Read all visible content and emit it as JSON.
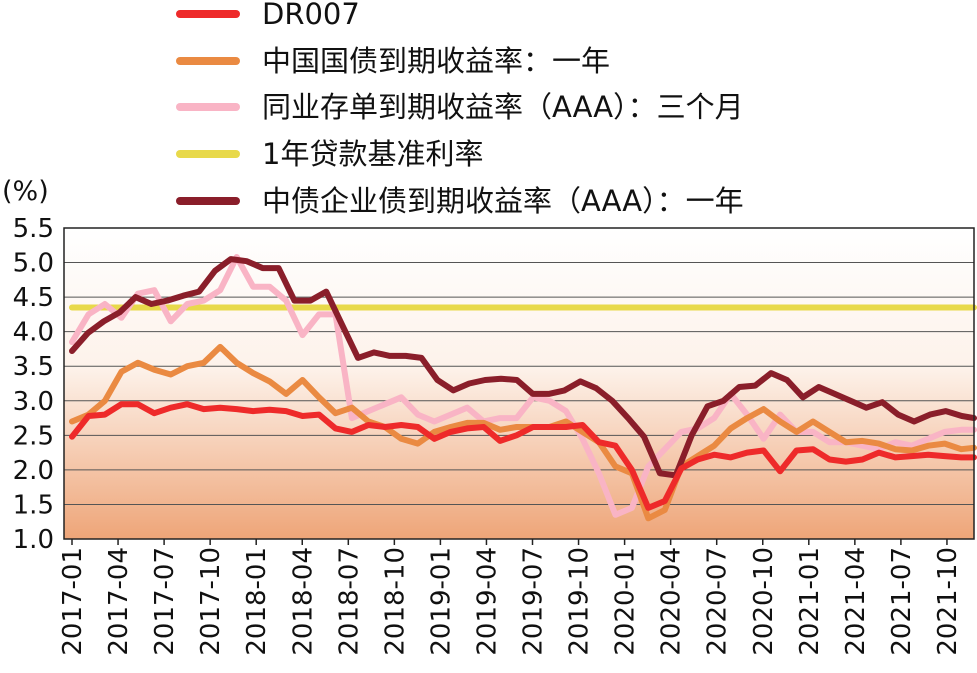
{
  "chart_data": {
    "type": "line",
    "unit_label": "(%)",
    "ylim": [
      1.0,
      5.5
    ],
    "y_ticks": [
      "1.0",
      "1.5",
      "2.0",
      "2.5",
      "3.0",
      "3.5",
      "4.0",
      "4.5",
      "5.0",
      "5.5"
    ],
    "x_ticks": [
      "2017-01",
      "2017-04",
      "2017-07",
      "2017-10",
      "2018-01",
      "2018-04",
      "2018-07",
      "2018-10",
      "2019-01",
      "2019-04",
      "2019-07",
      "2019-10",
      "2020-01",
      "2020-04",
      "2020-07",
      "2020-10",
      "2021-01",
      "2021-04",
      "2021-07",
      "2021-10"
    ],
    "x_start": "2017-01",
    "x_end": "2021-12",
    "grid": true,
    "legend_position": "top",
    "series": [
      {
        "name": "DR007",
        "color": "#ee2a2a",
        "values": [
          2.48,
          2.78,
          2.8,
          2.95,
          2.95,
          2.82,
          2.9,
          2.95,
          2.88,
          2.9,
          2.88,
          2.85,
          2.87,
          2.85,
          2.78,
          2.8,
          2.6,
          2.55,
          2.65,
          2.62,
          2.65,
          2.62,
          2.45,
          2.55,
          2.6,
          2.62,
          2.42,
          2.5,
          2.62,
          2.62,
          2.62,
          2.65,
          2.4,
          2.35,
          2.0,
          1.45,
          1.55,
          2.02,
          2.15,
          2.22,
          2.18,
          2.25,
          2.28,
          1.98,
          2.28,
          2.3,
          2.15,
          2.12,
          2.15,
          2.25,
          2.18,
          2.2,
          2.22,
          2.2,
          2.18,
          2.18
        ]
      },
      {
        "name": "中国国债到期收益率：一年",
        "color": "#ea8a42",
        "values": [
          2.7,
          2.8,
          3.0,
          3.42,
          3.55,
          3.45,
          3.38,
          3.5,
          3.55,
          3.78,
          3.55,
          3.4,
          3.28,
          3.1,
          3.3,
          3.05,
          2.82,
          2.9,
          2.7,
          2.62,
          2.45,
          2.38,
          2.55,
          2.62,
          2.68,
          2.68,
          2.58,
          2.62,
          2.62,
          2.62,
          2.7,
          2.55,
          2.4,
          2.05,
          1.95,
          1.3,
          1.42,
          2.05,
          2.2,
          2.35,
          2.6,
          2.75,
          2.88,
          2.7,
          2.55,
          2.7,
          2.55,
          2.4,
          2.42,
          2.38,
          2.3,
          2.28,
          2.35,
          2.38,
          2.3,
          2.32
        ]
      },
      {
        "name": "同业存单到期收益率（AAA）：三个月",
        "color": "#f9b4c5",
        "values": [
          3.85,
          4.25,
          4.4,
          4.2,
          4.55,
          4.6,
          4.15,
          4.4,
          4.45,
          4.6,
          5.08,
          4.65,
          4.65,
          4.45,
          3.95,
          4.25,
          4.25,
          2.75,
          2.85,
          2.95,
          3.05,
          2.8,
          2.7,
          2.8,
          2.9,
          2.7,
          2.75,
          2.75,
          3.05,
          3.0,
          2.85,
          2.45,
          1.95,
          1.35,
          1.45,
          2.05,
          2.3,
          2.55,
          2.6,
          2.75,
          3.1,
          2.8,
          2.45,
          2.8,
          2.55,
          2.55,
          2.4,
          2.4,
          2.35,
          2.3,
          2.4,
          2.35,
          2.45,
          2.55,
          2.58,
          2.58
        ]
      },
      {
        "name": "1年贷款基准利率",
        "color": "#e8d94a",
        "values": [
          4.35,
          4.35,
          4.35,
          4.35,
          4.35,
          4.35,
          4.35,
          4.35,
          4.35,
          4.35,
          4.35,
          4.35,
          4.35,
          4.35,
          4.35,
          4.35,
          4.35,
          4.35,
          4.35,
          4.35,
          4.35,
          4.35,
          4.35,
          4.35,
          4.35,
          4.35,
          4.35,
          4.35,
          4.35,
          4.35,
          4.35,
          4.35,
          4.35,
          4.35,
          4.35,
          4.35,
          4.35,
          4.35,
          4.35,
          4.35,
          4.35,
          4.35,
          4.35,
          4.35,
          4.35,
          4.35,
          4.35,
          4.35,
          4.35,
          4.35,
          4.35,
          4.35,
          4.35,
          4.35,
          4.35,
          4.35,
          4.35,
          4.35,
          4.35,
          4.35
        ]
      },
      {
        "name": "中债企业债到期收益率（AAA）：一年",
        "color": "#8a1e2a",
        "values": [
          3.72,
          3.98,
          4.15,
          4.28,
          4.5,
          4.4,
          4.45,
          4.52,
          4.58,
          4.88,
          5.05,
          5.02,
          4.92,
          4.92,
          4.45,
          4.45,
          4.58,
          4.1,
          3.62,
          3.7,
          3.65,
          3.65,
          3.62,
          3.3,
          3.15,
          3.25,
          3.3,
          3.32,
          3.3,
          3.1,
          3.1,
          3.15,
          3.28,
          3.18,
          3.0,
          2.75,
          2.48,
          1.95,
          1.92,
          2.5,
          2.92,
          3.0,
          3.2,
          3.22,
          3.4,
          3.3,
          3.05,
          3.2,
          3.1,
          3.0,
          2.9,
          2.98,
          2.8,
          2.7,
          2.8,
          2.85,
          2.78,
          2.75
        ]
      }
    ]
  }
}
